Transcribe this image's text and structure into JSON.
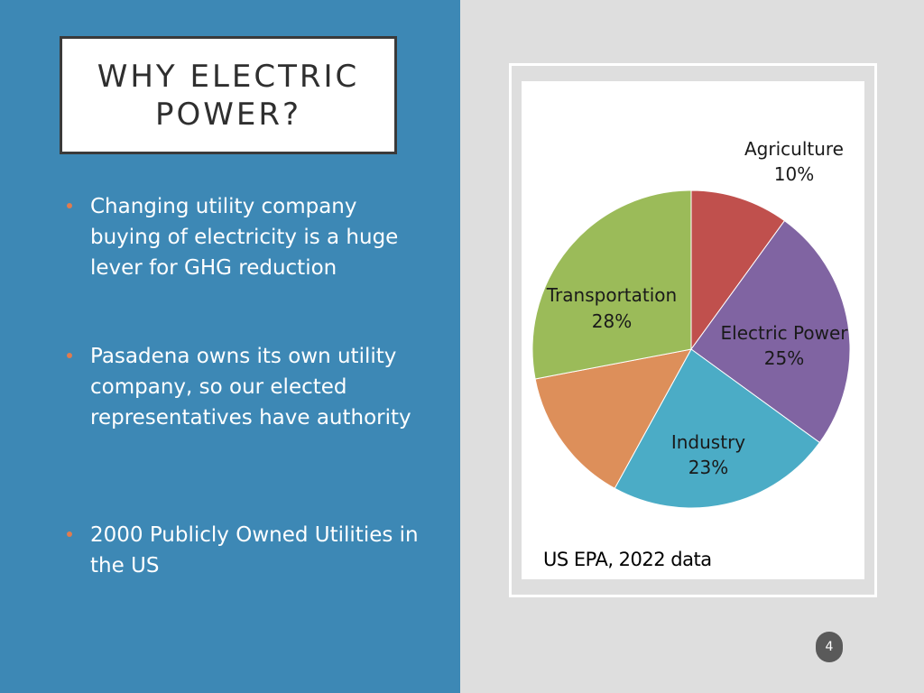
{
  "slide": {
    "title": "WHY ELECTRIC POWER?",
    "bullets": [
      "Changing utility company buying of electricity is a huge lever for GHG reduction",
      "Pasadena owns its own utility company, so our elected representatives have authority",
      "2000 Publicly Owned Utilities in the US"
    ],
    "source": "US EPA, 2022 data",
    "page_number": "4"
  },
  "colors": {
    "left_panel": "#3d88b5",
    "bullet_dot": "#e07b4f"
  },
  "chart_data": {
    "type": "pie",
    "slices": [
      {
        "name": "Agriculture",
        "value": 10,
        "label": "10%",
        "color": "#c0504d"
      },
      {
        "name": "Electric Power",
        "value": 25,
        "label": "25%",
        "color": "#8064a2"
      },
      {
        "name": "Industry",
        "value": 23,
        "label": "23%",
        "color": "#4bacc6"
      },
      {
        "name": "",
        "value": 14,
        "label": "",
        "color": "#dd8f5a"
      },
      {
        "name": "Transportation",
        "value": 28,
        "label": "28%",
        "color": "#9bbb59"
      }
    ]
  }
}
